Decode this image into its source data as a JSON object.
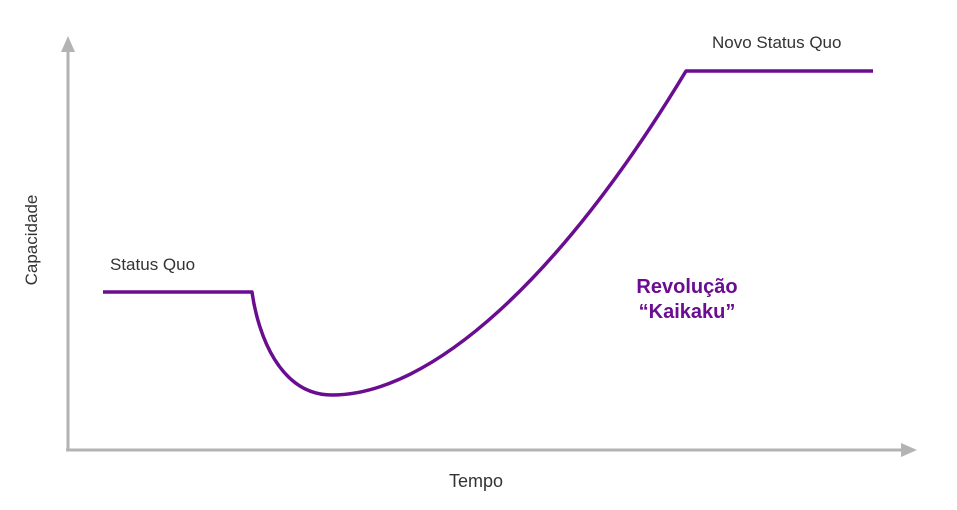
{
  "axes": {
    "x_label": "Tempo",
    "y_label": "Capacidade"
  },
  "labels": {
    "status_quo": "Status Quo",
    "novo_status_quo": "Novo Status Quo",
    "revolution_line1": "Revolução",
    "revolution_line2": "“Kaikaku”"
  },
  "colors": {
    "curve": "#6a0d91",
    "axis": "#b3b3b3",
    "text": "#333333"
  }
}
